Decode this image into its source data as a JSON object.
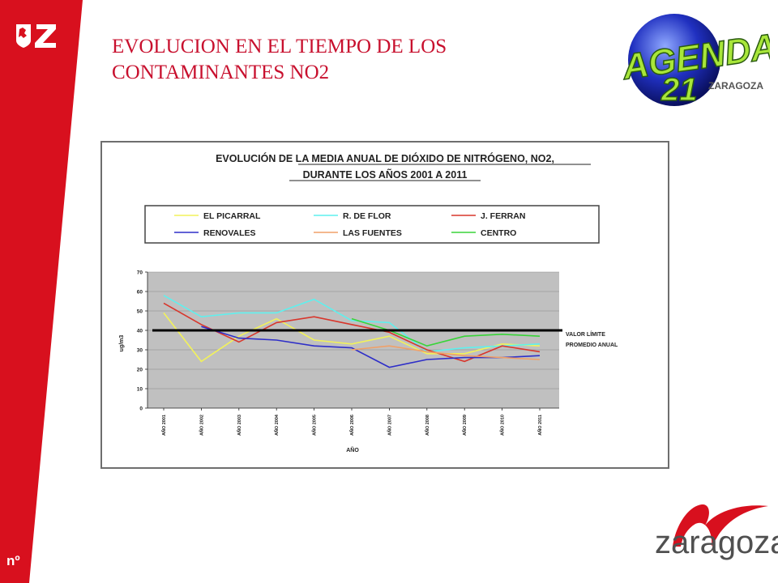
{
  "slide": {
    "title_line1": "EVOLUCION EN EL TIEMPO DE LOS",
    "title_line2": "CONTAMINANTES NO2",
    "slide_number": "nº",
    "brand_text": "zaragoza",
    "agenda_word": "AGENDA",
    "agenda_number": "21",
    "agenda_city": "ZARAGOZA",
    "red_color": "#d8101e"
  },
  "chart_data": {
    "type": "line",
    "title_line1": "EVOLUCIÓN DE LA MEDIA ANUAL DE DIÓXIDO DE NITRÓGENO, NO2,",
    "title_line2": "DURANTE LOS AÑOS 2001 A 2011",
    "xlabel": "AÑO",
    "ylabel": "ug/m3",
    "ylim": [
      0,
      70
    ],
    "yticks": [
      0,
      10,
      20,
      30,
      40,
      50,
      60,
      70
    ],
    "grid": true,
    "legend_position": "top",
    "categories": [
      "AÑO 2001",
      "AÑO 2002",
      "AÑO 2003",
      "AÑO 2004",
      "AÑO 2005",
      "AÑO 2006",
      "AÑO 2007",
      "AÑO 2008",
      "AÑO 2009",
      "AÑO 2010",
      "AÑO 2011"
    ],
    "series": [
      {
        "name": "EL PICARRAL",
        "color": "#f2f25a",
        "values": [
          49,
          24,
          37,
          46,
          35,
          33,
          37,
          28,
          28,
          33,
          32
        ]
      },
      {
        "name": "R. DE FLOR",
        "color": "#5ef0ee",
        "values": [
          58,
          47,
          49,
          49,
          56,
          45,
          44,
          29,
          31,
          32,
          33
        ]
      },
      {
        "name": "J. FERRAN",
        "color": "#d8362c",
        "values": [
          54,
          43,
          34,
          44,
          47,
          43,
          39,
          30,
          24,
          32,
          29
        ]
      },
      {
        "name": "RENOVALES",
        "color": "#2e2ec8",
        "values": [
          null,
          42,
          36,
          35,
          32,
          31,
          21,
          25,
          26,
          26,
          27
        ]
      },
      {
        "name": "LAS FUENTES",
        "color": "#f0a068",
        "values": [
          null,
          null,
          null,
          null,
          null,
          30,
          32,
          29,
          27,
          26,
          25
        ]
      },
      {
        "name": "CENTRO",
        "color": "#38d438",
        "values": [
          null,
          null,
          null,
          null,
          null,
          46,
          40,
          32,
          37,
          38,
          37
        ]
      }
    ],
    "limit_value": 40,
    "limit_label_line1": "VALOR LÍMITE",
    "limit_label_line2": "PROMEDIO ANUAL"
  }
}
